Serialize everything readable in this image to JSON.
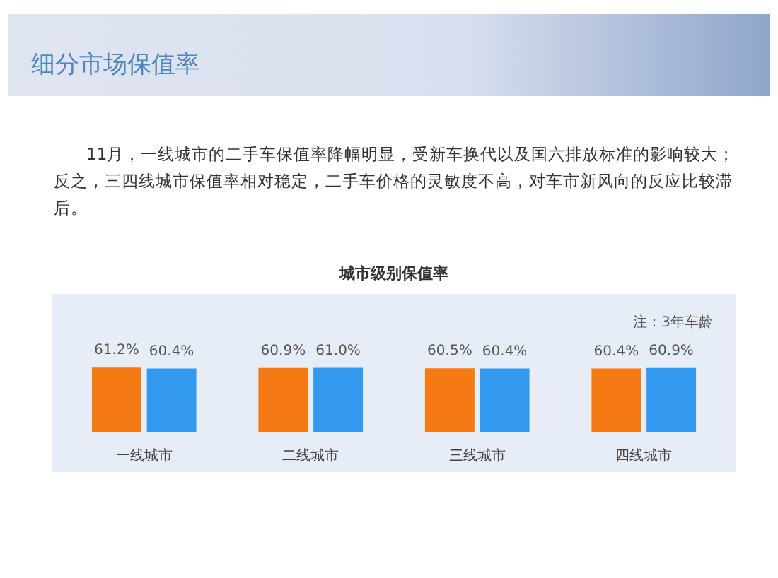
{
  "chart_data": {
    "type": "bar",
    "title": "城市级别保值率",
    "subtitle": "11月，一线城市的二手车保值率降幅明显，受新车换代以及国六排放标准的影响较大；反之，三四线城市保值率相对稳定，二手车价格的灵敏度不高，对车市新风向的反应比较滞后。",
    "annotations": [
      "细分市场保值率",
      "注：3年车龄"
    ],
    "categories": [
      "一线城市",
      "二线城市",
      "三线城市",
      "四线城市"
    ],
    "series": [
      {
        "color": "#f57a14",
        "values": [
          61.2,
          60.9,
          60.5,
          60.4
        ],
        "value_labels": [
          "61.2%",
          "60.9%",
          "60.5%",
          "60.4%"
        ]
      },
      {
        "color": "#3399ee",
        "values": [
          60.4,
          61.0,
          60.4,
          60.9
        ],
        "value_labels": [
          "60.4%",
          "61.0%",
          "60.4%",
          "60.9%"
        ]
      }
    ],
    "tick_labels": "x",
    "grid": false,
    "legend": false
  }
}
